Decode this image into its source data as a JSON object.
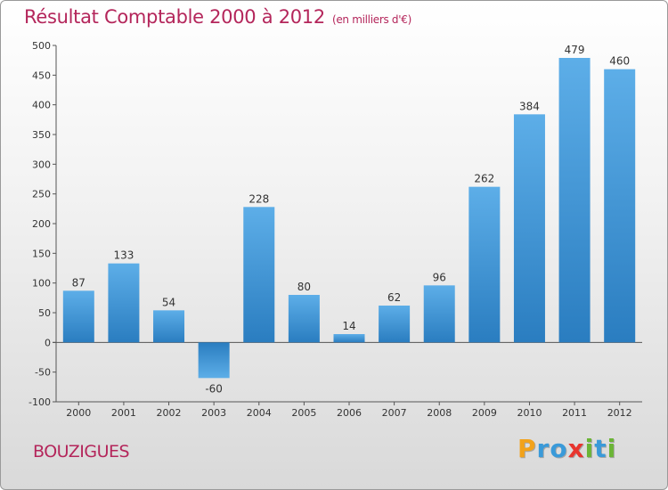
{
  "chart_data": {
    "type": "bar",
    "title": "Résultat Comptable 2000 à 2012",
    "subtitle": "(en milliers d'€)",
    "categories": [
      "2000",
      "2001",
      "2002",
      "2003",
      "2004",
      "2005",
      "2006",
      "2007",
      "2008",
      "2009",
      "2010",
      "2011",
      "2012"
    ],
    "values": [
      87,
      133,
      54,
      -60,
      228,
      80,
      14,
      62,
      96,
      262,
      384,
      479,
      460
    ],
    "ylim": [
      -100,
      500
    ],
    "yticks": [
      -100,
      -50,
      0,
      50,
      100,
      150,
      200,
      250,
      300,
      350,
      400,
      450,
      500
    ],
    "xlabel": "",
    "ylabel": "",
    "grid": false,
    "bar_color_light": "#5daee8",
    "bar_color_dark": "#2a7dc0"
  },
  "footer": {
    "commune": "BOUZIGUES",
    "logo_letters": [
      {
        "ch": "P",
        "color": "#f2a21b"
      },
      {
        "ch": "r",
        "color": "#3a9ad9"
      },
      {
        "ch": "o",
        "color": "#3a9ad9"
      },
      {
        "ch": "x",
        "color": "#e8352e"
      },
      {
        "ch": "i",
        "color": "#6bb536"
      },
      {
        "ch": "t",
        "color": "#3a9ad9"
      },
      {
        "ch": "i",
        "color": "#6bb536"
      }
    ]
  },
  "colors": {
    "title": "#b4265b",
    "axis": "#555555"
  }
}
